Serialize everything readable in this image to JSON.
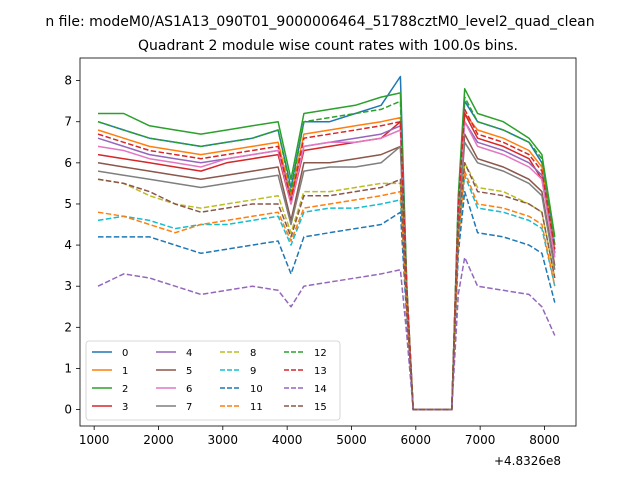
{
  "chart_data": {
    "type": "line",
    "suptitle": "n file: modeM0/AS1A13_090T01_9000006464_51788cztM0_level2_quad_clean",
    "title": "Quadrant 2 module wise count rates with 100.0s bins.",
    "xlabel": "",
    "ylabel": "",
    "x_offset_label": "+4.8326e8",
    "xlim": [
      780,
      8490
    ],
    "ylim": [
      -0.4,
      8.55
    ],
    "x_ticks": [
      1000,
      2000,
      3000,
      4000,
      5000,
      6000,
      7000,
      8000
    ],
    "x_tick_labels": [
      "1000",
      "2000",
      "3000",
      "4000",
      "5000",
      "6000",
      "7000",
      "8000"
    ],
    "y_ticks": [
      0,
      1,
      2,
      3,
      4,
      5,
      6,
      7,
      8
    ],
    "y_tick_labels": [
      "0",
      "1",
      "2",
      "3",
      "4",
      "5",
      "6",
      "7",
      "8"
    ],
    "legend_position": "lower-left",
    "grid": false,
    "x": [
      1060,
      1460,
      1860,
      2260,
      2660,
      3060,
      3460,
      3860,
      4060,
      4260,
      4660,
      5060,
      5460,
      5760,
      5860,
      5960,
      6560,
      6660,
      6760,
      6960,
      7360,
      7760,
      7960,
      8160
    ],
    "series": [
      {
        "name": "0",
        "color": "#1f77b4",
        "dash": false,
        "values": [
          7.0,
          6.8,
          6.6,
          6.5,
          6.4,
          6.5,
          6.6,
          6.8,
          5.4,
          7.0,
          7.0,
          7.2,
          7.4,
          8.1,
          3.0,
          0.0,
          0.0,
          5.0,
          7.5,
          7.0,
          6.8,
          6.5,
          6.0,
          4.0
        ]
      },
      {
        "name": "1",
        "color": "#ff7f0e",
        "dash": false,
        "values": [
          6.8,
          6.6,
          6.4,
          6.3,
          6.2,
          6.3,
          6.4,
          6.5,
          5.2,
          6.7,
          6.8,
          6.9,
          7.0,
          7.1,
          3.0,
          0.0,
          0.0,
          5.0,
          7.2,
          6.8,
          6.6,
          6.3,
          5.9,
          3.9
        ]
      },
      {
        "name": "2",
        "color": "#2ca02c",
        "dash": false,
        "values": [
          7.2,
          7.2,
          6.9,
          6.8,
          6.7,
          6.8,
          6.9,
          7.0,
          5.6,
          7.2,
          7.3,
          7.4,
          7.6,
          7.7,
          3.0,
          0.0,
          0.0,
          5.2,
          7.8,
          7.2,
          7.0,
          6.6,
          6.2,
          4.2
        ]
      },
      {
        "name": "3",
        "color": "#d62728",
        "dash": false,
        "values": [
          6.2,
          6.1,
          6.0,
          5.9,
          5.8,
          6.0,
          6.1,
          6.2,
          5.0,
          6.3,
          6.4,
          6.5,
          6.6,
          7.0,
          2.8,
          0.0,
          0.0,
          4.8,
          7.2,
          6.6,
          6.4,
          6.1,
          5.6,
          3.8
        ]
      },
      {
        "name": "4",
        "color": "#9467bd",
        "dash": false,
        "values": [
          6.6,
          6.4,
          6.2,
          6.1,
          6.0,
          6.1,
          6.2,
          6.3,
          5.1,
          6.4,
          6.5,
          6.6,
          6.7,
          6.9,
          2.9,
          0.0,
          0.0,
          4.9,
          7.0,
          6.5,
          6.3,
          6.0,
          5.7,
          3.8
        ]
      },
      {
        "name": "5",
        "color": "#8c564b",
        "dash": false,
        "values": [
          6.0,
          5.9,
          5.8,
          5.7,
          5.6,
          5.7,
          5.8,
          5.9,
          4.6,
          6.0,
          6.0,
          6.1,
          6.2,
          6.4,
          2.7,
          0.0,
          0.0,
          4.6,
          6.7,
          6.1,
          5.9,
          5.6,
          5.3,
          3.5
        ]
      },
      {
        "name": "6",
        "color": "#e377c2",
        "dash": false,
        "values": [
          6.4,
          6.3,
          6.1,
          6.0,
          5.9,
          6.1,
          6.2,
          6.3,
          5.0,
          6.4,
          6.5,
          6.5,
          6.6,
          6.8,
          2.9,
          0.0,
          0.0,
          4.9,
          7.0,
          6.4,
          6.2,
          5.9,
          5.6,
          3.7
        ]
      },
      {
        "name": "7",
        "color": "#7f7f7f",
        "dash": false,
        "values": [
          5.8,
          5.7,
          5.6,
          5.5,
          5.4,
          5.5,
          5.6,
          5.7,
          4.5,
          5.8,
          5.9,
          5.9,
          6.0,
          6.4,
          2.6,
          0.0,
          0.0,
          4.5,
          6.5,
          6.0,
          5.8,
          5.5,
          5.2,
          3.4
        ]
      },
      {
        "name": "8",
        "color": "#bcbd22",
        "dash": true,
        "values": [
          5.6,
          5.5,
          5.2,
          5.0,
          4.9,
          5.0,
          5.1,
          5.2,
          4.3,
          5.3,
          5.3,
          5.4,
          5.5,
          5.5,
          2.4,
          0.0,
          0.0,
          4.2,
          6.0,
          5.4,
          5.3,
          5.0,
          4.8,
          3.2
        ]
      },
      {
        "name": "9",
        "color": "#17becf",
        "dash": true,
        "values": [
          4.6,
          4.7,
          4.6,
          4.4,
          4.5,
          4.5,
          4.6,
          4.7,
          4.0,
          4.8,
          4.9,
          4.9,
          5.0,
          5.1,
          2.3,
          0.0,
          0.0,
          4.0,
          5.7,
          4.9,
          4.8,
          4.6,
          4.4,
          3.0
        ]
      },
      {
        "name": "10",
        "color": "#1f77b4",
        "dash": true,
        "values": [
          4.2,
          4.2,
          4.2,
          4.0,
          3.8,
          3.9,
          4.0,
          4.1,
          3.3,
          4.2,
          4.3,
          4.4,
          4.5,
          4.8,
          2.2,
          0.0,
          0.0,
          3.8,
          5.3,
          4.3,
          4.2,
          4.0,
          3.8,
          2.6
        ]
      },
      {
        "name": "11",
        "color": "#ff7f0e",
        "dash": true,
        "values": [
          4.8,
          4.7,
          4.5,
          4.3,
          4.5,
          4.6,
          4.7,
          4.8,
          4.1,
          4.9,
          5.0,
          5.1,
          5.2,
          5.3,
          2.4,
          0.0,
          0.0,
          4.1,
          5.8,
          5.0,
          4.9,
          4.7,
          4.5,
          3.0
        ]
      },
      {
        "name": "12",
        "color": "#2ca02c",
        "dash": true,
        "values": [
          7.0,
          6.8,
          6.6,
          6.5,
          6.4,
          6.5,
          6.6,
          6.8,
          5.3,
          7.0,
          7.1,
          7.2,
          7.3,
          7.5,
          3.0,
          0.0,
          0.0,
          5.1,
          7.6,
          7.0,
          6.8,
          6.5,
          6.1,
          4.0
        ]
      },
      {
        "name": "13",
        "color": "#d62728",
        "dash": true,
        "values": [
          6.7,
          6.5,
          6.3,
          6.2,
          6.1,
          6.2,
          6.3,
          6.4,
          5.1,
          6.6,
          6.7,
          6.8,
          6.9,
          7.0,
          2.9,
          0.0,
          0.0,
          4.9,
          7.3,
          6.7,
          6.5,
          6.2,
          5.8,
          3.9
        ]
      },
      {
        "name": "14",
        "color": "#9467bd",
        "dash": true,
        "values": [
          3.0,
          3.3,
          3.2,
          3.0,
          2.8,
          2.9,
          3.0,
          2.9,
          2.5,
          3.0,
          3.1,
          3.2,
          3.3,
          3.4,
          1.8,
          0.0,
          0.0,
          2.8,
          3.7,
          3.0,
          2.9,
          2.8,
          2.5,
          1.8
        ]
      },
      {
        "name": "15",
        "color": "#8c564b",
        "dash": true,
        "values": [
          5.6,
          5.5,
          5.3,
          5.0,
          4.8,
          4.9,
          5.0,
          5.0,
          4.2,
          5.2,
          5.2,
          5.3,
          5.4,
          5.6,
          2.4,
          0.0,
          0.0,
          4.3,
          6.0,
          5.3,
          5.2,
          5.0,
          4.8,
          3.2
        ]
      }
    ]
  }
}
